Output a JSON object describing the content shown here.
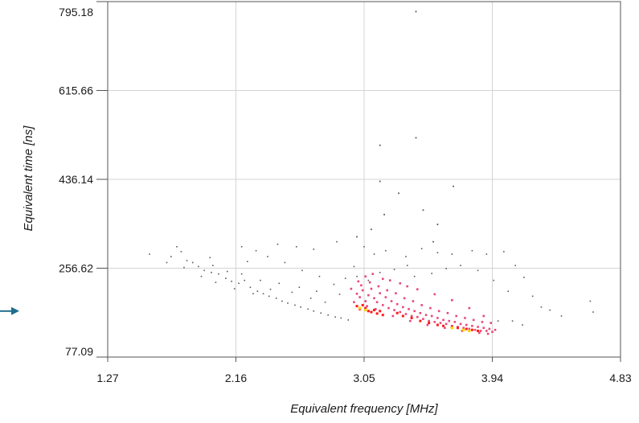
{
  "chart_data": {
    "type": "scatter",
    "title": "",
    "xlabel": "Equivalent frequency [MHz]",
    "ylabel": "Equivalent time [ns]",
    "xlim": [
      1.27,
      4.83
    ],
    "ylim": [
      77.09,
      795.18
    ],
    "x_ticks": [
      "1.27",
      "2.16",
      "3.05",
      "3.94",
      "4.83"
    ],
    "y_ticks": [
      "795.18",
      "615.66",
      "436.14",
      "256.62",
      "77.09"
    ],
    "grid": true,
    "legend": "none",
    "density_colors": {
      "low": "#5a5a5a",
      "medium": "#e8487a",
      "high": "#ff1a1a",
      "peak": "#ffd400"
    },
    "arrow_color": "#1f6e8c",
    "arrow_target_y": 170,
    "point_groups": [
      {
        "name": "sparse",
        "points": [
          [
            1.56,
            285
          ],
          [
            1.71,
            280
          ],
          [
            1.75,
            300
          ],
          [
            1.78,
            290
          ],
          [
            1.82,
            272
          ],
          [
            1.86,
            268
          ],
          [
            1.9,
            260
          ],
          [
            1.94,
            252
          ],
          [
            1.99,
            248
          ],
          [
            2.04,
            245
          ],
          [
            2.09,
            236
          ],
          [
            2.13,
            230
          ],
          [
            2.18,
            226
          ],
          [
            2.22,
            232
          ],
          [
            2.26,
            218
          ],
          [
            2.31,
            210
          ],
          [
            2.35,
            205
          ],
          [
            2.39,
            200
          ],
          [
            2.44,
            196
          ],
          [
            2.48,
            190
          ],
          [
            2.52,
            186
          ],
          [
            2.57,
            182
          ],
          [
            2.61,
            178
          ],
          [
            2.66,
            174
          ],
          [
            2.7,
            170
          ],
          [
            2.75,
            166
          ],
          [
            2.8,
            162
          ],
          [
            2.85,
            158
          ],
          [
            2.89,
            156
          ],
          [
            2.94,
            152
          ],
          [
            1.68,
            268
          ],
          [
            1.8,
            258
          ],
          [
            1.92,
            240
          ],
          [
            2.02,
            228
          ],
          [
            2.15,
            215
          ],
          [
            2.28,
            205
          ],
          [
            2.4,
            214
          ],
          [
            2.55,
            208
          ],
          [
            2.68,
            196
          ],
          [
            2.78,
            188
          ],
          [
            2.84,
            224
          ],
          [
            2.74,
            240
          ],
          [
            2.62,
            252
          ],
          [
            2.5,
            268
          ],
          [
            2.38,
            280
          ],
          [
            2.3,
            292
          ],
          [
            2.2,
            300
          ],
          [
            2.45,
            305
          ],
          [
            2.58,
            300
          ],
          [
            2.7,
            295
          ],
          [
            2.86,
            310
          ],
          [
            3.05,
            300
          ],
          [
            3.12,
            285
          ],
          [
            3.2,
            292
          ],
          [
            3.34,
            280
          ],
          [
            3.45,
            296
          ],
          [
            3.56,
            288
          ],
          [
            3.66,
            285
          ],
          [
            3.8,
            292
          ],
          [
            3.9,
            285
          ],
          [
            4.02,
            290
          ],
          [
            4.1,
            262
          ],
          [
            4.16,
            238
          ],
          [
            4.22,
            200
          ],
          [
            4.28,
            178
          ],
          [
            4.34,
            172
          ],
          [
            4.42,
            160
          ],
          [
            4.62,
            190
          ],
          [
            4.64,
            168
          ],
          [
            4.08,
            150
          ],
          [
            4.15,
            142
          ],
          [
            3.98,
            150
          ],
          [
            2.0,
            262
          ],
          [
            2.1,
            250
          ],
          [
            2.2,
            245
          ],
          [
            2.33,
            232
          ],
          [
            2.46,
            226
          ],
          [
            2.6,
            218
          ],
          [
            2.72,
            210
          ],
          [
            2.88,
            204
          ],
          [
            2.92,
            236
          ],
          [
            2.98,
            260
          ],
          [
            3.0,
            240
          ],
          [
            3.08,
            232
          ],
          [
            3.16,
            248
          ],
          [
            3.26,
            254
          ],
          [
            3.35,
            262
          ],
          [
            3.4,
            240
          ],
          [
            3.52,
            246
          ],
          [
            3.62,
            256
          ],
          [
            3.72,
            262
          ],
          [
            3.84,
            252
          ],
          [
            3.95,
            232
          ],
          [
            4.05,
            210
          ],
          [
            2.24,
            270
          ],
          [
            1.98,
            278
          ]
        ]
      },
      {
        "name": "outliers",
        "points": [
          [
            3.41,
            775
          ],
          [
            3.41,
            520
          ],
          [
            3.16,
            505
          ],
          [
            3.16,
            432
          ],
          [
            3.29,
            408
          ],
          [
            3.19,
            365
          ],
          [
            3.46,
            374
          ],
          [
            3.56,
            345
          ],
          [
            3.67,
            422
          ],
          [
            3.0,
            320
          ],
          [
            3.1,
            335
          ],
          [
            3.53,
            310
          ]
        ]
      },
      {
        "name": "cluster",
        "points": [
          [
            3.0,
            205
          ],
          [
            3.02,
            198
          ],
          [
            3.04,
            212
          ],
          [
            3.06,
            190
          ],
          [
            3.08,
            202
          ],
          [
            3.1,
            215
          ],
          [
            3.12,
            196
          ],
          [
            3.14,
            188
          ],
          [
            3.16,
            206
          ],
          [
            3.18,
            182
          ],
          [
            3.2,
            198
          ],
          [
            3.22,
            176
          ],
          [
            3.24,
            190
          ],
          [
            3.26,
            172
          ],
          [
            3.28,
            184
          ],
          [
            3.3,
            168
          ],
          [
            3.32,
            178
          ],
          [
            3.34,
            164
          ],
          [
            3.36,
            174
          ],
          [
            3.38,
            160
          ],
          [
            3.4,
            170
          ],
          [
            3.42,
            158
          ],
          [
            3.44,
            166
          ],
          [
            3.46,
            154
          ],
          [
            3.48,
            162
          ],
          [
            3.5,
            150
          ],
          [
            3.52,
            160
          ],
          [
            3.54,
            148
          ],
          [
            3.56,
            156
          ],
          [
            3.58,
            146
          ],
          [
            3.6,
            152
          ],
          [
            3.62,
            144
          ],
          [
            3.64,
            150
          ],
          [
            3.66,
            140
          ],
          [
            3.68,
            148
          ],
          [
            3.7,
            138
          ],
          [
            3.72,
            144
          ],
          [
            3.74,
            136
          ],
          [
            3.76,
            142
          ],
          [
            3.78,
            134
          ],
          [
            3.8,
            140
          ],
          [
            3.82,
            132
          ],
          [
            3.84,
            138
          ],
          [
            3.86,
            130
          ],
          [
            3.88,
            136
          ],
          [
            3.9,
            130
          ],
          [
            3.92,
            134
          ],
          [
            3.94,
            128
          ],
          [
            3.96,
            132
          ],
          [
            2.98,
            188
          ],
          [
            3.03,
            222
          ],
          [
            3.09,
            228
          ],
          [
            3.15,
            220
          ],
          [
            3.21,
            212
          ],
          [
            3.27,
            206
          ],
          [
            3.33,
            196
          ],
          [
            3.39,
            190
          ],
          [
            3.45,
            182
          ],
          [
            3.51,
            176
          ],
          [
            3.57,
            170
          ],
          [
            3.63,
            166
          ],
          [
            3.69,
            160
          ],
          [
            3.75,
            156
          ],
          [
            3.81,
            152
          ],
          [
            3.87,
            148
          ],
          [
            3.93,
            146
          ],
          [
            2.96,
            215
          ],
          [
            3.07,
            180
          ],
          [
            3.13,
            174
          ],
          [
            3.25,
            160
          ],
          [
            3.37,
            150
          ],
          [
            3.49,
            142
          ],
          [
            3.61,
            136
          ],
          [
            3.73,
            130
          ],
          [
            3.85,
            126
          ],
          [
            3.91,
            124
          ],
          [
            3.06,
            240
          ],
          [
            3.18,
            235
          ],
          [
            3.3,
            226
          ],
          [
            3.42,
            214
          ],
          [
            3.54,
            204
          ],
          [
            3.66,
            192
          ],
          [
            3.78,
            176
          ],
          [
            3.88,
            160
          ],
          [
            3.01,
            230
          ],
          [
            3.11,
            245
          ],
          [
            3.23,
            232
          ],
          [
            3.35,
            220
          ]
        ]
      },
      {
        "name": "dense",
        "points": [
          [
            3.0,
            180
          ],
          [
            3.02,
            174
          ],
          [
            3.04,
            182
          ],
          [
            3.06,
            176
          ],
          [
            3.08,
            170
          ],
          [
            3.1,
            168
          ],
          [
            3.12,
            172
          ],
          [
            3.14,
            165
          ],
          [
            3.16,
            170
          ],
          [
            3.18,
            162
          ],
          [
            3.28,
            166
          ],
          [
            3.32,
            160
          ],
          [
            3.38,
            156
          ],
          [
            3.44,
            150
          ],
          [
            3.5,
            146
          ],
          [
            3.56,
            142
          ],
          [
            3.6,
            140
          ],
          [
            3.66,
            138
          ],
          [
            3.7,
            136
          ],
          [
            3.76,
            134
          ],
          [
            3.8,
            132
          ],
          [
            3.84,
            130
          ]
        ]
      },
      {
        "name": "peak",
        "points": [
          [
            3.02,
            176
          ],
          [
            3.06,
            172
          ],
          [
            3.66,
            136
          ],
          [
            3.74,
            132
          ],
          [
            3.78,
            130
          ]
        ]
      }
    ]
  }
}
